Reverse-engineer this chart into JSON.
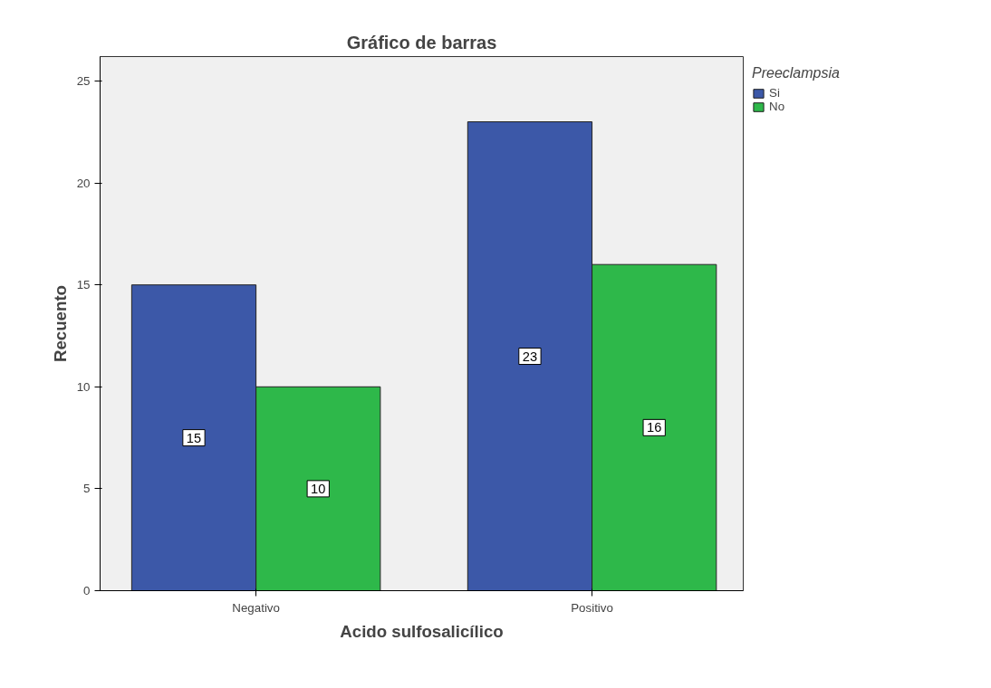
{
  "chart_data": {
    "type": "bar",
    "title": "Gráfico de barras",
    "xlabel": "Acido sulfosalicílico",
    "ylabel": "Recuento",
    "legend_title": "Preeclampsia",
    "categories": [
      "Negativo",
      "Positivo"
    ],
    "series": [
      {
        "name": "Si",
        "color": "#3c58a8",
        "values": [
          15,
          23
        ]
      },
      {
        "name": "No",
        "color": "#2eb84a",
        "values": [
          10,
          16
        ]
      }
    ],
    "ylim": [
      0,
      26.2
    ],
    "yticks": [
      0,
      5,
      10,
      15,
      20,
      25
    ],
    "grid": false,
    "legend": "top right",
    "data_labels": true
  }
}
